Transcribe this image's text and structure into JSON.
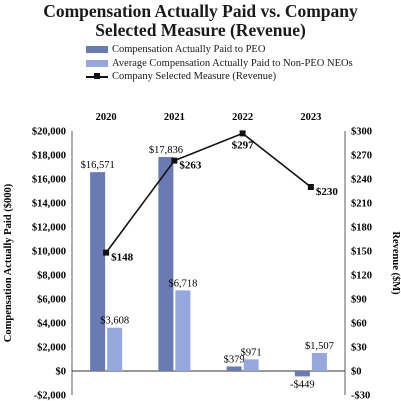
{
  "title_line1": "Compensation Actually Paid vs. Company",
  "title_line2": "Selected Measure (Revenue)",
  "legend": [
    {
      "label": "Compensation Actually Paid to PEO",
      "color": "#6a7bb4",
      "kind": "bar"
    },
    {
      "label": "Average Compensation Actually Paid to Non-PEO NEOs",
      "color": "#95a7dc",
      "kind": "bar"
    },
    {
      "label": "Company Selected Measure (Revenue)",
      "color": "#111111",
      "kind": "line"
    }
  ],
  "chart_data": {
    "type": "bar",
    "categories": [
      "2020",
      "2021",
      "2022",
      "2023"
    ],
    "series": [
      {
        "name": "Compensation Actually Paid to PEO",
        "values": [
          16571,
          17836,
          379,
          -449
        ],
        "labels": [
          "$16,571",
          "$17,836",
          "$379",
          "-$449"
        ],
        "color": "#6a7bb4"
      },
      {
        "name": "Average Compensation Actually Paid to Non-PEO NEOs",
        "values": [
          3608,
          6718,
          971,
          1507
        ],
        "labels": [
          "$3,608",
          "$6,718",
          "$971",
          "$1,507"
        ],
        "color": "#95a7dc"
      }
    ],
    "line_series": {
      "name": "Company Selected Measure (Revenue)",
      "values": [
        148,
        263,
        297,
        230
      ],
      "labels": [
        "$148",
        "$263",
        "$297",
        "$230"
      ],
      "color": "#111111"
    },
    "ylabel": "Compensation Actually Paid ($000)",
    "y2label": "Revenue ($M)",
    "ylim": [
      -2000,
      20000
    ],
    "y2lim": [
      -30,
      300
    ],
    "yticks": [
      {
        "value": 20000,
        "label": "$20,000"
      },
      {
        "value": 18000,
        "label": "$18,000"
      },
      {
        "value": 16000,
        "label": "$16,000"
      },
      {
        "value": 14000,
        "label": "$14,000"
      },
      {
        "value": 12000,
        "label": "$12,000"
      },
      {
        "value": 10000,
        "label": "$10,000"
      },
      {
        "value": 8000,
        "label": "$8,000"
      },
      {
        "value": 6000,
        "label": "$6,000"
      },
      {
        "value": 4000,
        "label": "$4,000"
      },
      {
        "value": 2000,
        "label": "$2,000"
      },
      {
        "value": 0,
        "label": "$0"
      },
      {
        "value": -2000,
        "label": "-$2,000"
      }
    ],
    "y2ticks": [
      {
        "value": 300,
        "label": "$300"
      },
      {
        "value": 270,
        "label": "$270"
      },
      {
        "value": 240,
        "label": "$240"
      },
      {
        "value": 210,
        "label": "$210"
      },
      {
        "value": 180,
        "label": "$180"
      },
      {
        "value": 150,
        "label": "$150"
      },
      {
        "value": 120,
        "label": "$120"
      },
      {
        "value": 90,
        "label": "$90"
      },
      {
        "value": 60,
        "label": "$60"
      },
      {
        "value": 30,
        "label": "$30"
      },
      {
        "value": 0,
        "label": "$0"
      },
      {
        "value": -30,
        "label": "-$30"
      }
    ],
    "grid": false,
    "legend_position": "top"
  }
}
